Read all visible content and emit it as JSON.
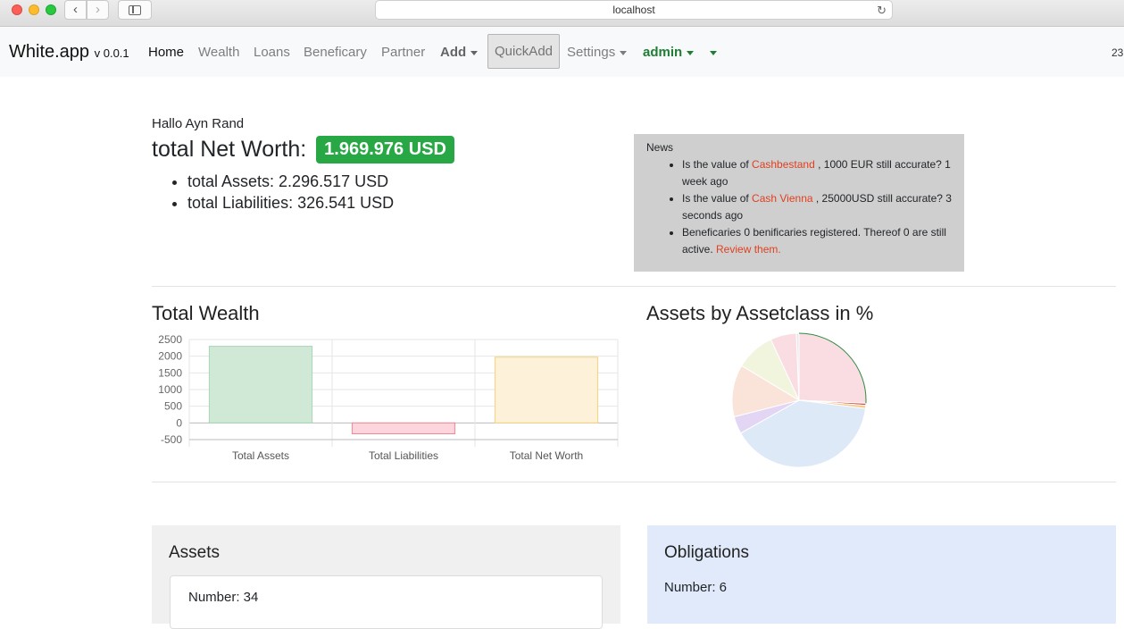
{
  "browser": {
    "url": "localhost"
  },
  "navbar": {
    "brand": "White.app",
    "version": "v 0.0.1",
    "items": [
      "Home",
      "Wealth",
      "Loans",
      "Beneficary",
      "Partner"
    ],
    "add": "Add",
    "quickadd": "QuickAdd",
    "settings": "Settings",
    "user": "admin",
    "right_text": "23"
  },
  "header": {
    "greeting": "Hallo Ayn Rand",
    "networth_label": "total Net Worth:",
    "networth_value": "1.969.976 USD",
    "assets": "total Assets: 2.296.517 USD",
    "liabilities": "total Liabilities: 326.541 USD"
  },
  "news": {
    "title": "News",
    "items": [
      {
        "pre": "Is the value of ",
        "link": "Cashbestand",
        "post": " , 1000 EUR still accurate? 1 week ago"
      },
      {
        "pre": "Is the value of ",
        "link": "Cash Vienna",
        "post": " , 25000USD still accurate? 3 seconds ago"
      },
      {
        "pre": "Beneficaries 0 benificaries registered. Thereof 0 are still active. ",
        "link": "Review them.",
        "post": ""
      }
    ]
  },
  "sections": {
    "total_wealth": "Total Wealth",
    "assets_by_class": "Assets by Assetclass in %"
  },
  "chart_data": [
    {
      "type": "bar",
      "title": "Total Wealth",
      "categories": [
        "Total Assets",
        "Total Liabilities",
        "Total Net Worth"
      ],
      "values": [
        2296517,
        -326541,
        1969976
      ],
      "ylim": [
        -500,
        2500
      ],
      "yticks": [
        2500,
        2000,
        1500,
        1000,
        500,
        0,
        -500
      ],
      "colors": [
        "#cfe9d6",
        "#fcd6dc",
        "#fdf1da"
      ],
      "borders": [
        "#a8d5b5",
        "#e88a98",
        "#f6d27a"
      ],
      "grid": true
    },
    {
      "type": "pie",
      "title": "Assets by Assetclass in %",
      "values": [
        24.5,
        0.5,
        0.7,
        38,
        4,
        12,
        9,
        6,
        0.6
      ],
      "colors": [
        "#fadde3",
        "#d94b3e",
        "#f3cc8f",
        "#dde9f7",
        "#e3d6f4",
        "#fae3d8",
        "#f1f5de",
        "#fadde3",
        "#e8e8e8"
      ]
    }
  ],
  "cards": {
    "assets_title": "Assets",
    "assets_number": "Number: 34",
    "obligations_title": "Obligations",
    "obligations_number": "Number: 6"
  }
}
